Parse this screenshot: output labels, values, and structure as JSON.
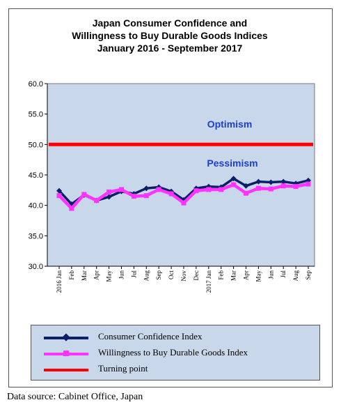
{
  "chart_data": {
    "type": "line",
    "title_lines": [
      "Japan Consumer Confidence and",
      "Willingness to Buy Durable Goods Indices",
      "January 2016 - September  2017"
    ],
    "categories": [
      "2016 Jan",
      "Feb",
      "Mar",
      "Apr",
      "May",
      "Jun",
      "Jul",
      "Aug",
      "Sep",
      "Oct",
      "Nov",
      "Dec",
      "2017 Jan",
      "Feb",
      "Mar",
      "Apr",
      "May",
      "Jun",
      "Jul",
      "Aug",
      "Sep"
    ],
    "ylim": [
      30,
      60
    ],
    "yticks": [
      "30.0",
      "35.0",
      "40.0",
      "45.0",
      "50.0",
      "55.0",
      "60.0"
    ],
    "grid": false,
    "series": [
      {
        "name": "Consumer Confidence Index",
        "color": "#0b1f66",
        "values": [
          42.4,
          40.2,
          41.7,
          40.8,
          41.4,
          42.3,
          41.9,
          42.8,
          43.0,
          42.3,
          40.9,
          42.8,
          43.1,
          43.0,
          44.4,
          43.2,
          43.9,
          43.8,
          43.9,
          43.6,
          44.1
        ]
      },
      {
        "name": "Willingness to Buy Durable Goods Index",
        "color": "#ff33ff",
        "values": [
          41.6,
          39.5,
          41.8,
          40.8,
          42.2,
          42.6,
          41.5,
          41.6,
          42.6,
          41.9,
          40.4,
          42.4,
          42.6,
          42.6,
          43.4,
          42.0,
          42.8,
          42.7,
          43.2,
          43.1,
          43.5
        ]
      },
      {
        "name": "Turning point",
        "color": "#ff0000",
        "values": [
          50,
          50,
          50,
          50,
          50,
          50,
          50,
          50,
          50,
          50,
          50,
          50,
          50,
          50,
          50,
          50,
          50,
          50,
          50,
          50,
          50
        ]
      }
    ],
    "annotations": [
      "Optimism",
      "Pessimism"
    ],
    "legend_position": "bottom"
  },
  "source_text": "Data source: Cabinet Office, Japan"
}
